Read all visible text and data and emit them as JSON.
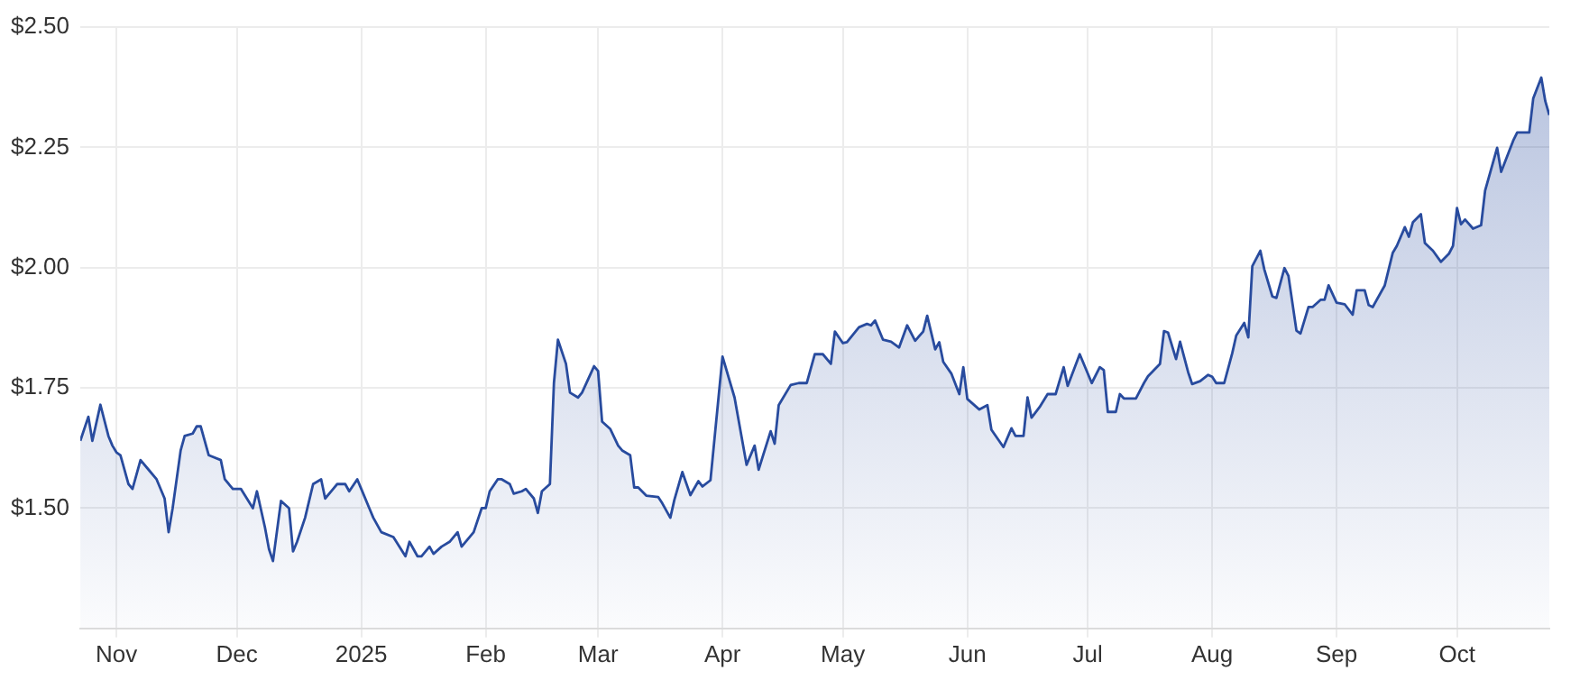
{
  "chart_data": {
    "type": "area",
    "x": [
      "2024-10-23",
      "2024-10-25",
      "2024-10-26",
      "2024-10-28",
      "2024-10-30",
      "2024-10-31",
      "2024-11-01",
      "2024-11-02",
      "2024-11-04",
      "2024-11-05",
      "2024-11-07",
      "2024-11-09",
      "2024-11-11",
      "2024-11-13",
      "2024-11-14",
      "2024-11-15",
      "2024-11-17",
      "2024-11-18",
      "2024-11-20",
      "2024-11-21",
      "2024-11-22",
      "2024-11-24",
      "2024-11-27",
      "2024-11-28",
      "2024-11-30",
      "2024-12-02",
      "2024-12-05",
      "2024-12-06",
      "2024-12-08",
      "2024-12-09",
      "2024-12-10",
      "2024-12-12",
      "2024-12-14",
      "2024-12-15",
      "2024-12-16",
      "2024-12-18",
      "2024-12-20",
      "2024-12-22",
      "2024-12-23",
      "2024-12-25",
      "2024-12-26",
      "2024-12-28",
      "2024-12-29",
      "2024-12-31",
      "2025-01-01",
      "2025-01-03",
      "2025-01-04",
      "2025-01-06",
      "2025-01-09",
      "2025-01-12",
      "2025-01-13",
      "2025-01-15",
      "2025-01-16",
      "2025-01-18",
      "2025-01-19",
      "2025-01-21",
      "2025-01-23",
      "2025-01-25",
      "2025-01-26",
      "2025-01-29",
      "2025-01-31",
      "2025-02-01",
      "2025-02-02",
      "2025-02-04",
      "2025-02-05",
      "2025-02-07",
      "2025-02-08",
      "2025-02-10",
      "2025-02-11",
      "2025-02-13",
      "2025-02-14",
      "2025-02-15",
      "2025-02-17",
      "2025-02-18",
      "2025-02-19",
      "2025-02-21",
      "2025-02-22",
      "2025-02-24",
      "2025-02-25",
      "2025-02-28",
      "2025-03-01",
      "2025-03-02",
      "2025-03-04",
      "2025-03-06",
      "2025-03-07",
      "2025-03-09",
      "2025-03-10",
      "2025-03-11",
      "2025-03-13",
      "2025-03-16",
      "2025-03-17",
      "2025-03-19",
      "2025-03-20",
      "2025-03-22",
      "2025-03-24",
      "2025-03-26",
      "2025-03-27",
      "2025-03-29",
      "2025-04-01",
      "2025-04-04",
      "2025-04-07",
      "2025-04-09",
      "2025-04-10",
      "2025-04-13",
      "2025-04-14",
      "2025-04-15",
      "2025-04-18",
      "2025-04-20",
      "2025-04-22",
      "2025-04-24",
      "2025-04-26",
      "2025-04-28",
      "2025-04-29",
      "2025-05-01",
      "2025-05-02",
      "2025-05-05",
      "2025-05-07",
      "2025-05-08",
      "2025-05-09",
      "2025-05-11",
      "2025-05-13",
      "2025-05-15",
      "2025-05-17",
      "2025-05-19",
      "2025-05-21",
      "2025-05-22",
      "2025-05-24",
      "2025-05-25",
      "2025-05-26",
      "2025-05-28",
      "2025-05-30",
      "2025-05-31",
      "2025-06-01",
      "2025-06-04",
      "2025-06-06",
      "2025-06-07",
      "2025-06-10",
      "2025-06-12",
      "2025-06-13",
      "2025-06-15",
      "2025-06-16",
      "2025-06-17",
      "2025-06-19",
      "2025-06-21",
      "2025-06-23",
      "2025-06-25",
      "2025-06-26",
      "2025-06-29",
      "2025-07-02",
      "2025-07-04",
      "2025-07-05",
      "2025-07-06",
      "2025-07-08",
      "2025-07-09",
      "2025-07-10",
      "2025-07-13",
      "2025-07-15",
      "2025-07-16",
      "2025-07-19",
      "2025-07-20",
      "2025-07-21",
      "2025-07-23",
      "2025-07-24",
      "2025-07-26",
      "2025-07-27",
      "2025-07-29",
      "2025-07-31",
      "2025-08-01",
      "2025-08-02",
      "2025-08-04",
      "2025-08-06",
      "2025-08-07",
      "2025-08-09",
      "2025-08-10",
      "2025-08-11",
      "2025-08-13",
      "2025-08-14",
      "2025-08-16",
      "2025-08-17",
      "2025-08-19",
      "2025-08-20",
      "2025-08-22",
      "2025-08-23",
      "2025-08-25",
      "2025-08-26",
      "2025-08-28",
      "2025-08-29",
      "2025-08-30",
      "2025-09-01",
      "2025-09-03",
      "2025-09-05",
      "2025-09-06",
      "2025-09-08",
      "2025-09-09",
      "2025-09-10",
      "2025-09-13",
      "2025-09-15",
      "2025-09-16",
      "2025-09-18",
      "2025-09-19",
      "2025-09-20",
      "2025-09-22",
      "2025-09-23",
      "2025-09-25",
      "2025-09-27",
      "2025-09-29",
      "2025-09-30",
      "2025-10-01",
      "2025-10-02",
      "2025-10-03",
      "2025-10-05",
      "2025-10-07",
      "2025-10-08",
      "2025-10-11",
      "2025-10-12",
      "2025-10-15",
      "2025-10-16",
      "2025-10-19",
      "2025-10-20",
      "2025-10-22",
      "2025-10-23",
      "2025-10-24"
    ],
    "series": [
      {
        "color": "#284b9e",
        "values": [
          1.64,
          1.69,
          1.64,
          1.715,
          1.65,
          1.63,
          1.616,
          1.61,
          1.55,
          1.54,
          1.6,
          1.58,
          1.56,
          1.52,
          1.45,
          1.5,
          1.62,
          1.65,
          1.655,
          1.67,
          1.67,
          1.61,
          1.6,
          1.56,
          1.54,
          1.54,
          1.5,
          1.535,
          1.46,
          1.415,
          1.39,
          1.515,
          1.5,
          1.41,
          1.43,
          1.48,
          1.55,
          1.56,
          1.52,
          1.54,
          1.55,
          1.55,
          1.535,
          1.56,
          1.54,
          1.5,
          1.48,
          1.45,
          1.44,
          1.4,
          1.43,
          1.4,
          1.4,
          1.42,
          1.405,
          1.42,
          1.43,
          1.45,
          1.42,
          1.45,
          1.5,
          1.5,
          1.535,
          1.56,
          1.56,
          1.55,
          1.53,
          1.535,
          1.54,
          1.52,
          1.49,
          1.535,
          1.55,
          1.76,
          1.85,
          1.8,
          1.74,
          1.73,
          1.74,
          1.795,
          1.785,
          1.68,
          1.665,
          1.63,
          1.62,
          1.61,
          1.543,
          1.543,
          1.526,
          1.523,
          1.51,
          1.48,
          1.517,
          1.575,
          1.527,
          1.556,
          1.545,
          1.558,
          1.815,
          1.73,
          1.59,
          1.63,
          1.58,
          1.66,
          1.634,
          1.714,
          1.756,
          1.76,
          1.76,
          1.82,
          1.82,
          1.8,
          1.867,
          1.843,
          1.845,
          1.876,
          1.883,
          1.88,
          1.89,
          1.85,
          1.846,
          1.834,
          1.88,
          1.848,
          1.867,
          1.9,
          1.83,
          1.845,
          1.804,
          1.78,
          1.737,
          1.793,
          1.727,
          1.705,
          1.714,
          1.663,
          1.627,
          1.666,
          1.65,
          1.65,
          1.73,
          1.688,
          1.71,
          1.737,
          1.737,
          1.793,
          1.754,
          1.82,
          1.76,
          1.793,
          1.787,
          1.7,
          1.7,
          1.737,
          1.728,
          1.728,
          1.76,
          1.774,
          1.8,
          1.868,
          1.865,
          1.81,
          1.846,
          1.783,
          1.758,
          1.764,
          1.777,
          1.773,
          1.76,
          1.76,
          1.822,
          1.859,
          1.885,
          1.855,
          2.003,
          2.035,
          1.996,
          1.94,
          1.937,
          1.999,
          1.983,
          1.869,
          1.863,
          1.918,
          1.918,
          1.933,
          1.933,
          1.963,
          1.927,
          1.924,
          1.902,
          1.953,
          1.953,
          1.922,
          1.918,
          1.963,
          2.031,
          2.045,
          2.084,
          2.064,
          2.094,
          2.111,
          2.051,
          2.035,
          2.012,
          2.029,
          2.045,
          2.124,
          2.09,
          2.1,
          2.081,
          2.088,
          2.16,
          2.249,
          2.199,
          2.264,
          2.281,
          2.281,
          2.352,
          2.395,
          2.346,
          2.317
        ]
      }
    ],
    "xlim": [
      "2024-10-23",
      "2025-10-24"
    ],
    "xticks": [
      {
        "value": "2024-11-01",
        "label": "Nov"
      },
      {
        "value": "2024-12-01",
        "label": "Dec"
      },
      {
        "value": "2025-01-01",
        "label": "2025"
      },
      {
        "value": "2025-02-01",
        "label": "Feb"
      },
      {
        "value": "2025-03-01",
        "label": "Mar"
      },
      {
        "value": "2025-04-01",
        "label": "Apr"
      },
      {
        "value": "2025-05-01",
        "label": "May"
      },
      {
        "value": "2025-06-01",
        "label": "Jun"
      },
      {
        "value": "2025-07-01",
        "label": "Jul"
      },
      {
        "value": "2025-08-01",
        "label": "Aug"
      },
      {
        "value": "2025-09-01",
        "label": "Sep"
      },
      {
        "value": "2025-10-01",
        "label": "Oct"
      }
    ],
    "ylim": [
      1.25,
      2.5
    ],
    "yticks": [
      {
        "value": 1.5,
        "label": "$1.50"
      },
      {
        "value": 1.75,
        "label": "$1.75"
      },
      {
        "value": 2.0,
        "label": "$2.00"
      },
      {
        "value": 2.25,
        "label": "$2.25"
      },
      {
        "value": 2.5,
        "label": "$2.50"
      }
    ],
    "grid": true,
    "legend": false,
    "marker": "none"
  }
}
